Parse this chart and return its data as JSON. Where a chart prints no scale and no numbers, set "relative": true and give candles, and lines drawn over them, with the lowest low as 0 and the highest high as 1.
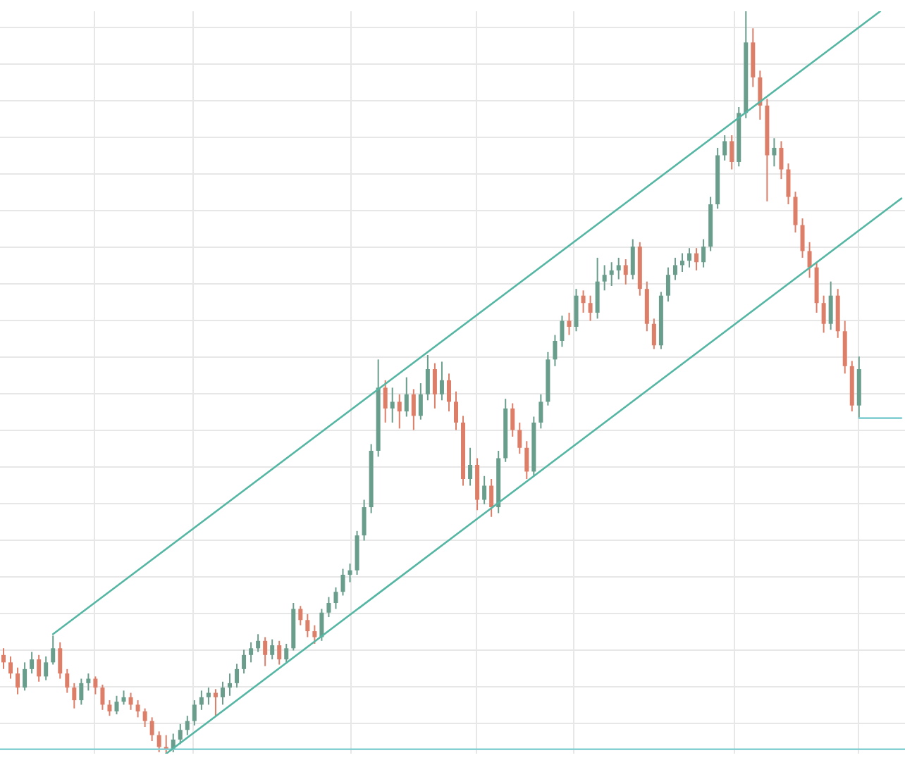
{
  "chart_data": {
    "type": "candlestick",
    "relative": true,
    "grid": true,
    "tick_labels": false,
    "marker": "none",
    "categories": [
      null,
      null,
      null,
      null,
      null,
      null,
      null,
      null,
      null,
      null,
      null,
      null,
      null,
      null,
      null,
      null,
      null,
      null,
      null,
      null,
      null,
      null,
      null,
      null,
      null,
      null,
      null,
      null,
      null,
      null,
      null,
      null,
      null,
      null,
      null,
      null,
      null,
      null,
      null,
      null,
      null,
      null,
      null,
      null,
      null,
      null,
      null,
      null,
      null,
      null,
      null,
      null,
      null,
      null,
      null,
      null,
      null,
      null,
      null,
      null,
      null,
      null,
      null,
      null,
      null,
      null,
      null,
      null,
      null,
      null,
      null,
      null,
      null,
      null,
      null,
      null,
      null,
      null,
      null,
      null,
      null,
      null,
      null,
      null,
      null,
      null,
      null,
      null,
      null,
      null,
      null,
      null,
      null,
      null,
      null,
      null,
      null,
      null,
      null,
      null,
      null,
      null,
      null,
      null,
      null,
      null,
      null,
      null,
      null,
      null,
      null,
      null,
      null,
      null,
      null,
      null,
      null,
      null,
      null,
      null,
      null,
      null,
      null,
      null,
      null,
      null,
      null,
      null
    ],
    "ohlc": [
      [
        0.133,
        0.142,
        0.114,
        0.123
      ],
      [
        0.123,
        0.131,
        0.101,
        0.108
      ],
      [
        0.108,
        0.116,
        0.08,
        0.089
      ],
      [
        0.089,
        0.123,
        0.085,
        0.114
      ],
      [
        0.114,
        0.137,
        0.108,
        0.127
      ],
      [
        0.127,
        0.133,
        0.097,
        0.104
      ],
      [
        0.104,
        0.131,
        0.099,
        0.123
      ],
      [
        0.123,
        0.159,
        0.12,
        0.142
      ],
      [
        0.142,
        0.15,
        0.101,
        0.108
      ],
      [
        0.108,
        0.114,
        0.082,
        0.089
      ],
      [
        0.089,
        0.095,
        0.061,
        0.072
      ],
      [
        0.072,
        0.101,
        0.066,
        0.095
      ],
      [
        0.095,
        0.108,
        0.085,
        0.101
      ],
      [
        0.101,
        0.104,
        0.08,
        0.089
      ],
      [
        0.089,
        0.093,
        0.059,
        0.066
      ],
      [
        0.066,
        0.072,
        0.051,
        0.057
      ],
      [
        0.057,
        0.078,
        0.053,
        0.07
      ],
      [
        0.07,
        0.085,
        0.066,
        0.076
      ],
      [
        0.076,
        0.082,
        0.059,
        0.066
      ],
      [
        0.066,
        0.072,
        0.049,
        0.057
      ],
      [
        0.057,
        0.061,
        0.036,
        0.044
      ],
      [
        0.044,
        0.049,
        0.017,
        0.025
      ],
      [
        0.025,
        0.03,
        0.002,
        0.009
      ],
      [
        0.009,
        0.025,
        0,
        0.006
      ],
      [
        0.006,
        0.027,
        0.002,
        0.019
      ],
      [
        0.019,
        0.04,
        0.013,
        0.032
      ],
      [
        0.032,
        0.051,
        0.025,
        0.044
      ],
      [
        0.044,
        0.072,
        0.038,
        0.066
      ],
      [
        0.066,
        0.085,
        0.059,
        0.076
      ],
      [
        0.076,
        0.089,
        0.066,
        0.082
      ],
      [
        0.082,
        0.087,
        0.051,
        0.076
      ],
      [
        0.076,
        0.097,
        0.066,
        0.089
      ],
      [
        0.089,
        0.108,
        0.078,
        0.095
      ],
      [
        0.095,
        0.121,
        0.089,
        0.114
      ],
      [
        0.114,
        0.14,
        0.108,
        0.133
      ],
      [
        0.133,
        0.15,
        0.123,
        0.142
      ],
      [
        0.142,
        0.161,
        0.137,
        0.152
      ],
      [
        0.152,
        0.157,
        0.118,
        0.133
      ],
      [
        0.133,
        0.154,
        0.127,
        0.146
      ],
      [
        0.146,
        0.152,
        0.12,
        0.127
      ],
      [
        0.127,
        0.148,
        0.123,
        0.142
      ],
      [
        0.142,
        0.203,
        0.139,
        0.195
      ],
      [
        0.195,
        0.199,
        0.173,
        0.18
      ],
      [
        0.18,
        0.188,
        0.157,
        0.165
      ],
      [
        0.165,
        0.173,
        0.148,
        0.157
      ],
      [
        0.157,
        0.195,
        0.152,
        0.19
      ],
      [
        0.19,
        0.211,
        0.184,
        0.203
      ],
      [
        0.203,
        0.224,
        0.195,
        0.218
      ],
      [
        0.218,
        0.249,
        0.213,
        0.241
      ],
      [
        0.241,
        0.256,
        0.231,
        0.247
      ],
      [
        0.247,
        0.3,
        0.241,
        0.294
      ],
      [
        0.294,
        0.342,
        0.287,
        0.332
      ],
      [
        0.332,
        0.417,
        0.324,
        0.408
      ],
      [
        0.408,
        0.531,
        0.4,
        0.493
      ],
      [
        0.493,
        0.503,
        0.446,
        0.465
      ],
      [
        0.465,
        0.493,
        0.446,
        0.474
      ],
      [
        0.474,
        0.484,
        0.438,
        0.461
      ],
      [
        0.461,
        0.507,
        0.454,
        0.484
      ],
      [
        0.484,
        0.491,
        0.436,
        0.455
      ],
      [
        0.455,
        0.499,
        0.45,
        0.484
      ],
      [
        0.484,
        0.537,
        0.476,
        0.518
      ],
      [
        0.518,
        0.526,
        0.465,
        0.484
      ],
      [
        0.484,
        0.528,
        0.476,
        0.503
      ],
      [
        0.503,
        0.512,
        0.461,
        0.474
      ],
      [
        0.474,
        0.488,
        0.436,
        0.446
      ],
      [
        0.446,
        0.455,
        0.361,
        0.37
      ],
      [
        0.37,
        0.412,
        0.361,
        0.389
      ],
      [
        0.389,
        0.398,
        0.328,
        0.342
      ],
      [
        0.342,
        0.374,
        0.336,
        0.361
      ],
      [
        0.361,
        0.37,
        0.319,
        0.332
      ],
      [
        0.332,
        0.408,
        0.324,
        0.398
      ],
      [
        0.398,
        0.478,
        0.393,
        0.465
      ],
      [
        0.465,
        0.472,
        0.427,
        0.436
      ],
      [
        0.436,
        0.446,
        0.404,
        0.412
      ],
      [
        0.412,
        0.421,
        0.37,
        0.38
      ],
      [
        0.38,
        0.454,
        0.374,
        0.446
      ],
      [
        0.446,
        0.484,
        0.438,
        0.474
      ],
      [
        0.474,
        0.541,
        0.469,
        0.531
      ],
      [
        0.531,
        0.564,
        0.522,
        0.556
      ],
      [
        0.556,
        0.59,
        0.548,
        0.583
      ],
      [
        0.583,
        0.594,
        0.564,
        0.575
      ],
      [
        0.575,
        0.626,
        0.569,
        0.617
      ],
      [
        0.617,
        0.624,
        0.594,
        0.607
      ],
      [
        0.607,
        0.617,
        0.583,
        0.594
      ],
      [
        0.594,
        0.668,
        0.586,
        0.636
      ],
      [
        0.636,
        0.658,
        0.624,
        0.645
      ],
      [
        0.645,
        0.662,
        0.63,
        0.651
      ],
      [
        0.651,
        0.668,
        0.639,
        0.658
      ],
      [
        0.658,
        0.666,
        0.632,
        0.645
      ],
      [
        0.645,
        0.693,
        0.639,
        0.683
      ],
      [
        0.683,
        0.689,
        0.617,
        0.626
      ],
      [
        0.626,
        0.636,
        0.569,
        0.579
      ],
      [
        0.579,
        0.586,
        0.545,
        0.55
      ],
      [
        0.55,
        0.622,
        0.545,
        0.617
      ],
      [
        0.617,
        0.655,
        0.609,
        0.645
      ],
      [
        0.645,
        0.668,
        0.638,
        0.658
      ],
      [
        0.658,
        0.674,
        0.649,
        0.664
      ],
      [
        0.664,
        0.681,
        0.655,
        0.674
      ],
      [
        0.674,
        0.681,
        0.651,
        0.662
      ],
      [
        0.662,
        0.693,
        0.655,
        0.683
      ],
      [
        0.683,
        0.75,
        0.677,
        0.74
      ],
      [
        0.74,
        0.816,
        0.734,
        0.806
      ],
      [
        0.806,
        0.833,
        0.799,
        0.825
      ],
      [
        0.825,
        0.833,
        0.787,
        0.797
      ],
      [
        0.797,
        0.871,
        0.791,
        0.863
      ],
      [
        0.863,
        1,
        0.856,
        0.958
      ],
      [
        0.958,
        0.977,
        0.898,
        0.911
      ],
      [
        0.911,
        0.92,
        0.854,
        0.873
      ],
      [
        0.873,
        0.882,
        0.744,
        0.806
      ],
      [
        0.806,
        0.829,
        0.791,
        0.816
      ],
      [
        0.816,
        0.825,
        0.774,
        0.787
      ],
      [
        0.787,
        0.795,
        0.74,
        0.75
      ],
      [
        0.75,
        0.757,
        0.702,
        0.712
      ],
      [
        0.712,
        0.721,
        0.668,
        0.677
      ],
      [
        0.677,
        0.689,
        0.641,
        0.655
      ],
      [
        0.655,
        0.662,
        0.594,
        0.607
      ],
      [
        0.607,
        0.617,
        0.567,
        0.579
      ],
      [
        0.579,
        0.636,
        0.571,
        0.617
      ],
      [
        0.617,
        0.626,
        0.56,
        0.569
      ],
      [
        0.569,
        0.583,
        0.512,
        0.522
      ],
      [
        0.522,
        0.529,
        0.461,
        0.469
      ],
      [
        0.469,
        0.535,
        0.452,
        0.518
      ],
      null,
      null,
      null,
      null,
      null,
      null
    ],
    "colors": [
      "#dd7e68",
      "#dd7e68",
      "#dd7e68",
      "#6a9e8c",
      "#6a9e8c",
      "#dd7e68",
      "#6a9e8c",
      "#6a9e8c",
      "#dd7e68",
      "#dd7e68",
      "#dd7e68",
      "#6a9e8c",
      "#6a9e8c",
      "#dd7e68",
      "#dd7e68",
      "#dd7e68",
      "#6a9e8c",
      "#6a9e8c",
      "#dd7e68",
      "#dd7e68",
      "#dd7e68",
      "#dd7e68",
      "#dd7e68",
      "#dd7e68",
      "#6a9e8c",
      "#6a9e8c",
      "#6a9e8c",
      "#6a9e8c",
      "#6a9e8c",
      "#6a9e8c",
      "#dd7e68",
      "#6a9e8c",
      "#6a9e8c",
      "#6a9e8c",
      "#6a9e8c",
      "#6a9e8c",
      "#6a9e8c",
      "#dd7e68",
      "#6a9e8c",
      "#dd7e68",
      "#6a9e8c",
      "#6a9e8c",
      "#dd7e68",
      "#dd7e68",
      "#dd7e68",
      "#6a9e8c",
      "#6a9e8c",
      "#6a9e8c",
      "#6a9e8c",
      "#6a9e8c",
      "#6a9e8c",
      "#6a9e8c",
      "#6a9e8c",
      "#6a9e8c",
      "#dd7e68",
      "#6a9e8c",
      "#dd7e68",
      "#6a9e8c",
      "#dd7e68",
      "#6a9e8c",
      "#6a9e8c",
      "#dd7e68",
      "#6a9e8c",
      "#dd7e68",
      "#dd7e68",
      "#dd7e68",
      "#6a9e8c",
      "#dd7e68",
      "#6a9e8c",
      "#dd7e68",
      "#6a9e8c",
      "#6a9e8c",
      "#dd7e68",
      "#dd7e68",
      "#dd7e68",
      "#6a9e8c",
      "#6a9e8c",
      "#6a9e8c",
      "#6a9e8c",
      "#6a9e8c",
      "#dd7e68",
      "#6a9e8c",
      "#dd7e68",
      "#dd7e68",
      "#6a9e8c",
      "#6a9e8c",
      "#6a9e8c",
      "#6a9e8c",
      "#dd7e68",
      "#6a9e8c",
      "#dd7e68",
      "#dd7e68",
      "#dd7e68",
      "#6a9e8c",
      "#6a9e8c",
      "#6a9e8c",
      "#6a9e8c",
      "#6a9e8c",
      "#dd7e68",
      "#6a9e8c",
      "#6a9e8c",
      "#6a9e8c",
      "#6a9e8c",
      "#dd7e68",
      "#6a9e8c",
      "#6a9e8c",
      "#dd7e68",
      "#dd7e68",
      "#dd7e68",
      "#6a9e8c",
      "#dd7e68",
      "#dd7e68",
      "#dd7e68",
      "#dd7e68",
      "#dd7e68",
      "#dd7e68",
      "#dd7e68",
      "#6a9e8c",
      "#dd7e68",
      "#dd7e68",
      "#dd7e68",
      "#6a9e8c",
      null,
      null,
      null,
      null,
      null,
      null
    ],
    "series": [
      {
        "type": "line",
        "color": "#56b6a4",
        "values": [
          null,
          null,
          null,
          null,
          null,
          null,
          null,
          0.161,
          null,
          null,
          null,
          null,
          null,
          null,
          null,
          null,
          null,
          null,
          null,
          null,
          null,
          null,
          null,
          null,
          null,
          null,
          null,
          null,
          null,
          null,
          null,
          null,
          null,
          null,
          null,
          null,
          null,
          null,
          null,
          null,
          null,
          null,
          null,
          null,
          null,
          null,
          null,
          null,
          null,
          null,
          null,
          null,
          null,
          null,
          null,
          null,
          null,
          null,
          null,
          null,
          null,
          null,
          null,
          null,
          null,
          null,
          null,
          null,
          null,
          null,
          null,
          null,
          null,
          null,
          null,
          null,
          null,
          null,
          null,
          null,
          null,
          null,
          null,
          null,
          null,
          null,
          null,
          null,
          null,
          null,
          null,
          null,
          null,
          null,
          null,
          null,
          null,
          null,
          null,
          null,
          null,
          null,
          null,
          null,
          null,
          null,
          null,
          null,
          null,
          null,
          null,
          null,
          null,
          null,
          null,
          null,
          null,
          null,
          null,
          null,
          null,
          null,
          null,
          null,
          1,
          null,
          null,
          null
        ]
      },
      {
        "type": "line",
        "color": "#56b6a4",
        "values": [
          null,
          null,
          null,
          null,
          null,
          null,
          null,
          null,
          null,
          null,
          null,
          null,
          null,
          null,
          null,
          null,
          null,
          null,
          null,
          null,
          null,
          null,
          null,
          0,
          null,
          null,
          null,
          null,
          null,
          null,
          null,
          null,
          null,
          null,
          null,
          null,
          null,
          null,
          null,
          null,
          null,
          null,
          null,
          null,
          null,
          null,
          null,
          null,
          null,
          null,
          null,
          null,
          null,
          null,
          null,
          null,
          null,
          null,
          null,
          null,
          null,
          null,
          null,
          null,
          null,
          null,
          null,
          null,
          null,
          null,
          null,
          null,
          null,
          null,
          null,
          null,
          null,
          null,
          null,
          null,
          null,
          null,
          null,
          null,
          null,
          null,
          null,
          null,
          null,
          null,
          null,
          null,
          null,
          null,
          null,
          null,
          null,
          null,
          null,
          null,
          null,
          null,
          null,
          null,
          null,
          null,
          null,
          null,
          null,
          null,
          null,
          null,
          null,
          null,
          null,
          null,
          null,
          null,
          null,
          null,
          null,
          null,
          null,
          null,
          null,
          null,
          null,
          0.748
        ]
      },
      {
        "type": "line",
        "color": "#86cfd3",
        "values": [
          null,
          null,
          null,
          null,
          null,
          null,
          null,
          null,
          null,
          null,
          null,
          null,
          null,
          null,
          null,
          null,
          null,
          null,
          null,
          null,
          null,
          null,
          null,
          null,
          null,
          null,
          null,
          null,
          null,
          null,
          null,
          null,
          null,
          null,
          null,
          null,
          null,
          null,
          null,
          null,
          null,
          null,
          null,
          null,
          null,
          null,
          null,
          null,
          null,
          null,
          null,
          null,
          null,
          null,
          null,
          null,
          null,
          null,
          null,
          null,
          null,
          null,
          null,
          null,
          null,
          null,
          null,
          null,
          null,
          null,
          null,
          null,
          null,
          null,
          null,
          null,
          null,
          null,
          null,
          null,
          null,
          null,
          null,
          null,
          null,
          null,
          null,
          null,
          null,
          null,
          null,
          null,
          null,
          null,
          null,
          null,
          null,
          null,
          null,
          null,
          null,
          null,
          null,
          null,
          null,
          null,
          null,
          null,
          null,
          null,
          null,
          null,
          null,
          null,
          null,
          null,
          null,
          null,
          null,
          null,
          null,
          0.452,
          0.452,
          0.452,
          0.452,
          0.452,
          0.452,
          0.452
        ]
      }
    ],
    "ref_lines": [
      {
        "axis": "y",
        "value": 0.006,
        "color": "#86cfd3"
      }
    ]
  }
}
